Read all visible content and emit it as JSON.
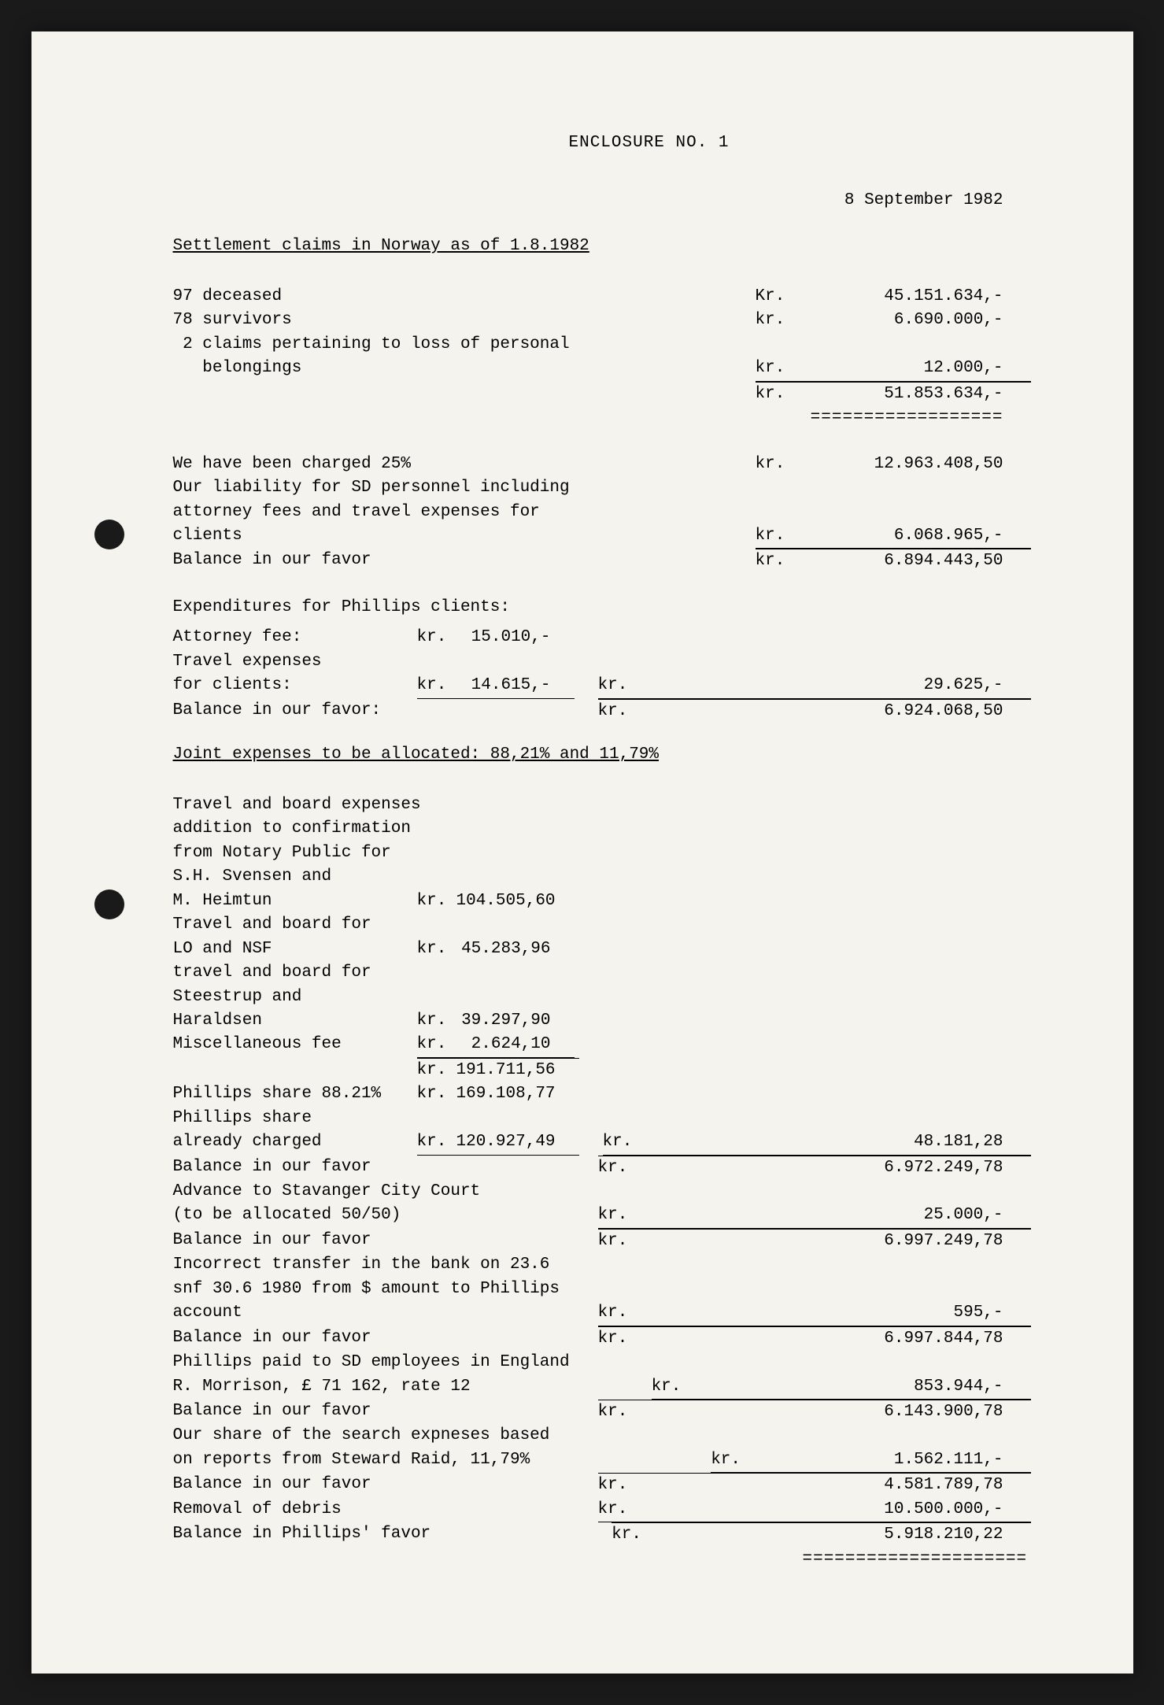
{
  "header": {
    "enclosure": "ENCLOSURE NO. 1",
    "date": "8 September 1982"
  },
  "title1": "Settlement claims in Norway as of 1.8.1982",
  "lines1": [
    {
      "left": "97 deceased",
      "kr": "Kr.",
      "val": "45.151.634,-"
    },
    {
      "left": "78 survivors",
      "kr": "kr.",
      "val": "6.690.000,-"
    },
    {
      "left": " 2 claims pertaining to loss of personal",
      "kr": "",
      "val": ""
    },
    {
      "left": "   belongings",
      "kr": "kr.",
      "val": "12.000,-",
      "under": true
    }
  ],
  "total1": {
    "kr": "kr.",
    "val": "51.853.634,-"
  },
  "eq1": "==================",
  "lines2": [
    {
      "left": "We have been charged 25%",
      "kr": "kr.",
      "val": "12.963.408,50"
    },
    {
      "left": "Our liability for SD personnel including",
      "kr": "",
      "val": ""
    },
    {
      "left": "attorney fees and travel expenses for",
      "kr": "",
      "val": ""
    },
    {
      "left": "clients",
      "kr": "kr.",
      "val": "6.068.965,-",
      "under": true
    },
    {
      "left": "Balance in our favor",
      "kr": "kr.",
      "val": "6.894.443,50",
      "over": true
    }
  ],
  "exp_title": "Expenditures for Phillips clients:",
  "exp_lines": [
    {
      "left": "Attorney fee:",
      "mkr": "kr.",
      "mval": "15.010,-",
      "kr": "",
      "val": ""
    },
    {
      "left": "Travel expenses",
      "mkr": "",
      "mval": "",
      "kr": "",
      "val": ""
    },
    {
      "left": "for clients:",
      "mkr": "kr.",
      "mval": "14.615,-",
      "munder": true,
      "kr": "kr.",
      "val": "29.625,-",
      "under": true
    },
    {
      "left": "Balance in our favor:",
      "mkr": "",
      "mval": "",
      "kr": "kr.",
      "val": "6.924.068,50",
      "over": true
    }
  ],
  "title2": "Joint expenses to be allocated: 88,21% and 11,79%",
  "joint": [
    {
      "left": "Travel and board expenses",
      "mkr": "",
      "mval": ""
    },
    {
      "left": "addition to confirmation",
      "mkr": "",
      "mval": ""
    },
    {
      "left": "from Notary Public for",
      "mkr": "",
      "mval": ""
    },
    {
      "left": "S.H. Svensen and",
      "mkr": "",
      "mval": ""
    },
    {
      "left": "M. Heimtun",
      "mkr": "kr.",
      "mval": "104.505,60"
    },
    {
      "left": "Travel and board for",
      "mkr": "",
      "mval": ""
    },
    {
      "left": "LO and NSF",
      "mkr": "kr.",
      "mval": "45.283,96"
    },
    {
      "left": "travel and board for",
      "mkr": "",
      "mval": ""
    },
    {
      "left": "Steestrup and",
      "mkr": "",
      "mval": ""
    },
    {
      "left": "Haraldsen",
      "mkr": "kr.",
      "mval": "39.297,90"
    },
    {
      "left": "Miscellaneous fee",
      "mkr": "kr.",
      "mval": "2.624,10",
      "munder": true
    },
    {
      "left": "",
      "mkr": "kr.",
      "mval": "191.711,56",
      "mover": true
    },
    {
      "left": "Phillips share 88.21%",
      "mkr": "kr.",
      "mval": "169.108,77"
    },
    {
      "left": "Phillips share",
      "mkr": "",
      "mval": ""
    },
    {
      "left": "already charged",
      "mkr": "kr.",
      "mval": "120.927,49",
      "munder": true,
      "kr": "kr.",
      "val": "48.181,28",
      "under": true
    },
    {
      "left": "Balance in our favor",
      "kr": "kr.",
      "val": "6.972.249,78",
      "over": true
    },
    {
      "left": "Advance to Stavanger City Court",
      "kr": "",
      "val": ""
    },
    {
      "left": "(to be allocated 50/50)",
      "kr": "kr.",
      "val": "25.000,-",
      "under": true
    },
    {
      "left": "Balance in our favor",
      "kr": "kr.",
      "val": "6.997.249,78",
      "over": true
    },
    {
      "left": "Incorrect transfer in the bank on 23.6",
      "kr": "",
      "val": ""
    },
    {
      "left": "snf 30.6 1980 from $ amount to Phillips",
      "kr": "",
      "val": ""
    },
    {
      "left": "account",
      "kr": "kr.",
      "val": "595,-",
      "under": true
    },
    {
      "left": "Balance in our favor",
      "kr": "kr.",
      "val": "6.997.844,78",
      "over": true
    },
    {
      "left": "Phillips paid to SD employees in England",
      "kr": "",
      "val": ""
    },
    {
      "left": "R. Morrison, £ 71 162, rate 12",
      "kr": "kr.",
      "val": "853.944,-",
      "under": true
    },
    {
      "left": "Balance in our favor",
      "kr": "kr.",
      "val": "6.143.900,78",
      "over": true
    },
    {
      "left": "Our share of the search expneses based",
      "kr": "",
      "val": ""
    },
    {
      "left": "on reports from Steward Raid, 11,79%",
      "kr": "kr.",
      "val": "1.562.111,-",
      "under": true
    },
    {
      "left": "Balance in our favor",
      "kr": "kr.",
      "val": "4.581.789,78",
      "over": true
    },
    {
      "left": "Removal of debris",
      "kr": "kr.",
      "val": "10.500.000,-",
      "under": true
    },
    {
      "left": "Balance in Phillips' favor",
      "kr": "kr.",
      "val": "5.918.210,22",
      "over": true
    }
  ],
  "eq2": "====================="
}
